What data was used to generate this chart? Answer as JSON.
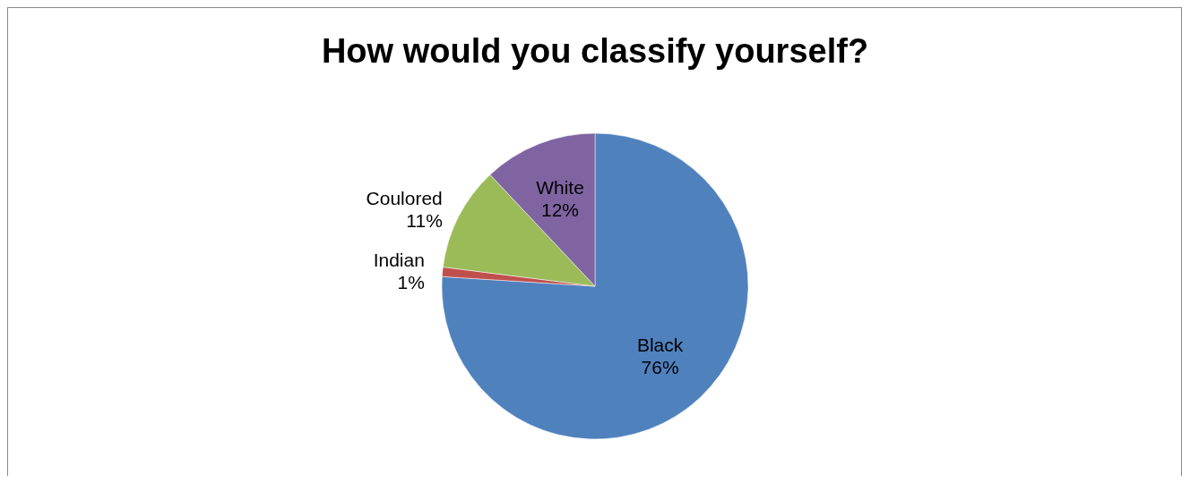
{
  "chart_data": {
    "type": "pie",
    "title": "How would you classify yourself?",
    "categories": [
      "Black",
      "Indian",
      "Coulored",
      "White"
    ],
    "values": [
      76,
      1,
      11,
      12
    ],
    "value_labels": [
      "76%",
      "1%",
      "11%",
      "12%"
    ],
    "colors": [
      "#4f81bd",
      "#c0504d",
      "#9bbb59",
      "#8064a2"
    ]
  }
}
